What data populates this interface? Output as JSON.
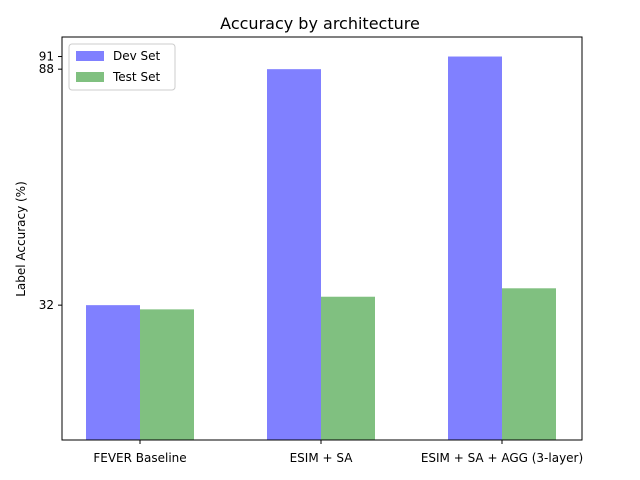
{
  "chart_data": {
    "type": "bar",
    "title": "Accuracy by architecture",
    "xlabel": "",
    "ylabel": "Label Accuracy (%)",
    "categories": [
      "FEVER Baseline",
      "ESIM + SA",
      "ESIM + SA + AGG (3-layer)"
    ],
    "series": [
      {
        "name": "Dev Set",
        "color": "#8080ff",
        "values": [
          32,
          88,
          91
        ]
      },
      {
        "name": "Test Set",
        "color": "#80c080",
        "values": [
          31,
          34,
          36
        ]
      }
    ],
    "yticks": [
      32,
      88,
      91
    ],
    "ylim": [
      0,
      96
    ],
    "legend_position": "top-left",
    "grid": false
  }
}
